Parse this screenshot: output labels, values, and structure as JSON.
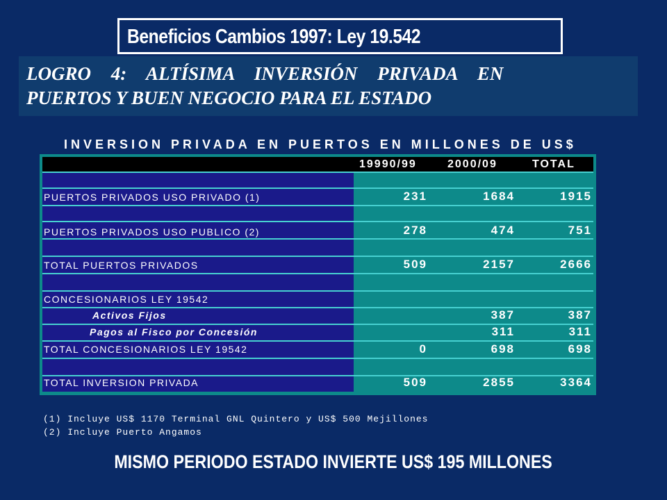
{
  "slide_title": "Beneficios Cambios 1997:   Ley 19.542",
  "logro": {
    "line1": "LOGRO 4: ALTÍSIMA INVERSIÓN PRIVADA EN",
    "line2": "PUERTOS Y BUEN NEGOCIO PARA EL ESTADO"
  },
  "table": {
    "title": "INVERSION PRIVADA EN PUERTOS EN MILLONES DE US$",
    "headers": [
      "19990/99",
      "2000/09",
      "TOTAL"
    ],
    "rows": [
      {
        "label": "PUERTOS PRIVADOS USO PRIVADO (1)",
        "v1": "231",
        "v2": "1684",
        "total": "1915"
      },
      {
        "label": "PUERTOS PRIVADOS USO PUBLICO  (2)",
        "v1": "278",
        "v2": "474",
        "total": "751"
      },
      {
        "label": "TOTAL PUERTOS PRIVADOS",
        "v1": "509",
        "v2": "2157",
        "total": "2666"
      },
      {
        "label": "CONCESIONARIOS LEY 19542",
        "v1": "",
        "v2": "",
        "total": ""
      },
      {
        "label": "Activos Fijos",
        "v1": "",
        "v2": "387",
        "total": "387"
      },
      {
        "label": "Pagos al Fisco por Concesión",
        "v1": "",
        "v2": "311",
        "total": "311"
      },
      {
        "label": "TOTAL CONCESIONARIOS LEY 19542",
        "v1": "0",
        "v2": "698",
        "total": "698"
      },
      {
        "label": "TOTAL INVERSION PRIVADA",
        "v1": "509",
        "v2": "2855",
        "total": "3364"
      }
    ]
  },
  "notes": [
    "(1) Incluye US$ 1170 Terminal GNL Quintero y US$ 500 Mejillones",
    "(2) Incluye Puerto Angamos"
  ],
  "footer": "MISMO PERIODO ESTADO INVIERTE US$ 195 MILLONES"
}
